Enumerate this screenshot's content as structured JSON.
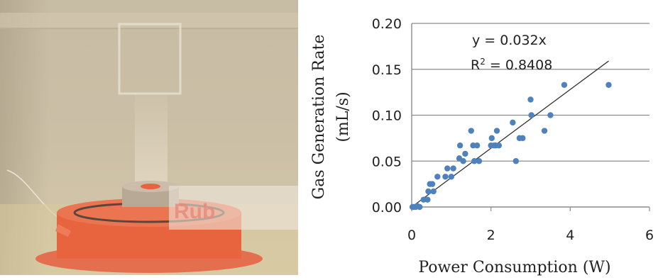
{
  "photo": {
    "overlay_text": "Rub"
  },
  "chart_data": {
    "type": "scatter",
    "title": "",
    "xlabel": "Power Consumption (W)",
    "ylabel_line1": "Gas Generation Rate",
    "ylabel_line2": "(mL/s)",
    "xlim": [
      0,
      6
    ],
    "ylim": [
      0,
      0.2
    ],
    "xticks": [
      0,
      2,
      4,
      6
    ],
    "yticks": [
      0.0,
      0.05,
      0.1,
      0.15,
      0.2
    ],
    "ytick_labels": [
      "0.00",
      "0.05",
      "0.10",
      "0.15",
      "0.20"
    ],
    "grid": "horizontal",
    "marker_color": "#4f81bd",
    "trendline": {
      "slope": 0.032,
      "x_range": [
        0,
        4.97
      ],
      "color": "#333333"
    },
    "annotations": {
      "equation": "y = 0.032x",
      "r2_prefix": "R",
      "r2_sup": "2",
      "r2_value": " = 0.8408"
    },
    "points": [
      [
        0.02,
        0.0
      ],
      [
        0.05,
        0.0
      ],
      [
        0.1,
        0.0
      ],
      [
        0.14,
        0.001
      ],
      [
        0.2,
        0.0
      ],
      [
        0.3,
        0.008
      ],
      [
        0.4,
        0.008
      ],
      [
        0.42,
        0.017
      ],
      [
        0.46,
        0.025
      ],
      [
        0.52,
        0.025
      ],
      [
        0.55,
        0.017
      ],
      [
        0.65,
        0.033
      ],
      [
        0.85,
        0.033
      ],
      [
        0.9,
        0.042
      ],
      [
        1.0,
        0.033
      ],
      [
        1.05,
        0.042
      ],
      [
        1.2,
        0.053
      ],
      [
        1.22,
        0.067
      ],
      [
        1.3,
        0.05
      ],
      [
        1.35,
        0.058
      ],
      [
        1.5,
        0.083
      ],
      [
        1.55,
        0.067
      ],
      [
        1.58,
        0.05
      ],
      [
        1.65,
        0.067
      ],
      [
        1.7,
        0.05
      ],
      [
        2.0,
        0.067
      ],
      [
        2.02,
        0.075
      ],
      [
        2.08,
        0.067
      ],
      [
        2.12,
        0.067
      ],
      [
        2.15,
        0.083
      ],
      [
        2.2,
        0.067
      ],
      [
        2.55,
        0.092
      ],
      [
        2.63,
        0.05
      ],
      [
        2.72,
        0.075
      ],
      [
        2.8,
        0.075
      ],
      [
        3.0,
        0.117
      ],
      [
        3.02,
        0.1
      ],
      [
        3.35,
        0.083
      ],
      [
        3.5,
        0.1
      ],
      [
        3.85,
        0.133
      ],
      [
        4.97,
        0.133
      ]
    ]
  }
}
